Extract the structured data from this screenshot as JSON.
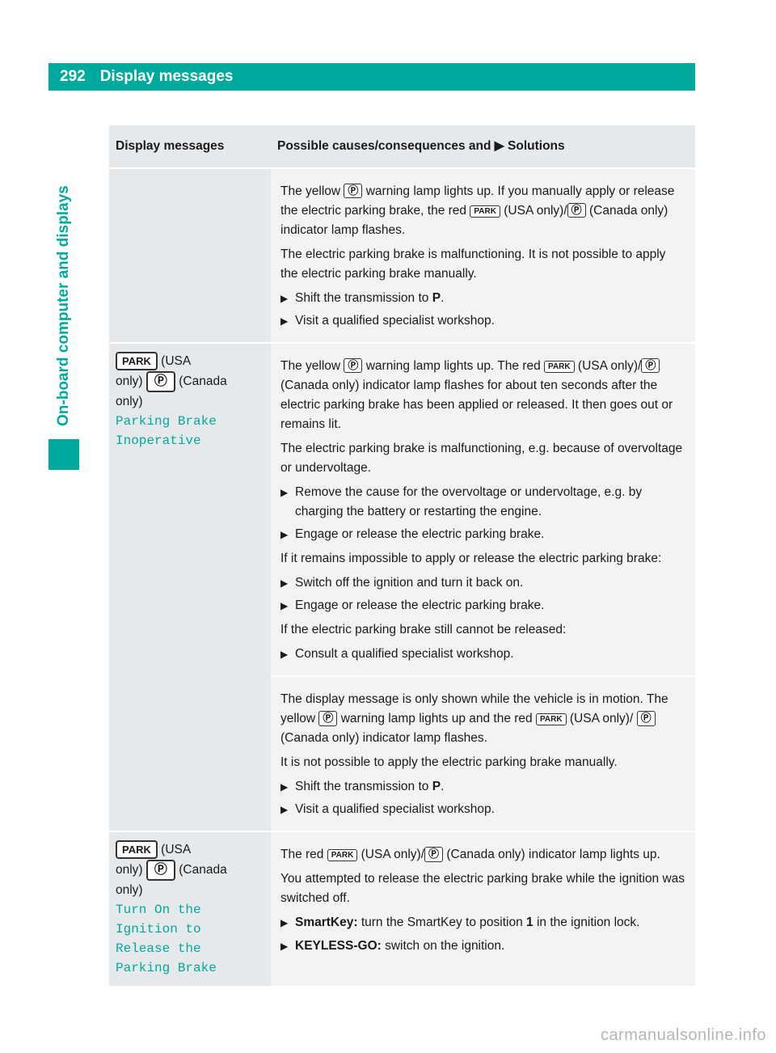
{
  "page_number": "292",
  "header_title": "Display messages",
  "sidebar_label": "On-board computer and displays",
  "accent_color": "#00a99d",
  "table": {
    "col1_header": "Display messages",
    "col2_header_prefix": "Possible causes/consequences and ",
    "col2_header_suffix": " Solutions",
    "rows": [
      {
        "msg_html": "",
        "sol": {
          "paras": [
            "The yellow {P_CIRCLE} warning lamp lights up. If you manually apply or release the electric parking brake, the red {PARK} (USA only)/{P_CIRCLE} (Canada only) indicator lamp flashes.",
            "The electric parking brake is malfunctioning. It is not possible to apply the electric parking brake manually."
          ],
          "bullets": [
            "Shift the transmission to <b>P</b>.",
            "Visit a qualified specialist workshop."
          ]
        }
      },
      {
        "msg": {
          "line1_prefix": "(USA",
          "line2": "only)",
          "line2_suffix": "(Canada",
          "line3": "only)",
          "teal": "Parking Brake\nInoperative"
        },
        "sol_blocks": [
          {
            "paras": [
              "The yellow {P_CIRCLE} warning lamp lights up. The red {PARK} (USA only)/{P_CIRCLE} (Canada only) indicator lamp flashes for about ten seconds after the electric parking brake has been applied or released. It then goes out or remains lit.",
              "The electric parking brake is malfunctioning, e.g. because of overvoltage or undervoltage."
            ],
            "bullets": [
              "Remove the cause for the overvoltage or undervoltage, e.g. by charging the battery or restarting the engine.",
              "Engage or release the electric parking brake."
            ],
            "after_para": "If it remains impossible to apply or release the electric parking brake:",
            "bullets2": [
              "Switch off the ignition and turn it back on.",
              "Engage or release the electric parking brake."
            ],
            "after_para2": "If the electric parking brake still cannot be released:",
            "bullets3": [
              "Consult a qualified specialist workshop."
            ]
          },
          {
            "paras": [
              "The display message is only shown while the vehicle is in motion. The yellow {P_CIRCLE} warning lamp lights up and the red {PARK} (USA only)/ {P_CIRCLE} (Canada only) indicator lamp flashes.",
              "It is not possible to apply the electric parking brake manually."
            ],
            "bullets": [
              "Shift the transmission to <b>P</b>.",
              "Visit a qualified specialist workshop."
            ]
          }
        ]
      },
      {
        "msg": {
          "line1_prefix": "(USA",
          "line2": "only)",
          "line2_suffix": "(Canada",
          "line3": "only)",
          "teal": "Turn On the\nIgnition to\nRelease the\nParking Brake"
        },
        "sol": {
          "paras": [
            "The red {PARK} (USA only)/{P_CIRCLE} (Canada only) indicator lamp lights up.",
            "You attempted to release the electric parking brake while the ignition was switched off."
          ],
          "bullets": [
            "<b>SmartKey:</b> turn the SmartKey to position <b>1</b> in the ignition lock.",
            "<b>KEYLESS-GO:</b> switch on the ignition."
          ]
        }
      }
    ]
  },
  "watermark": "carmanualsonline.info"
}
